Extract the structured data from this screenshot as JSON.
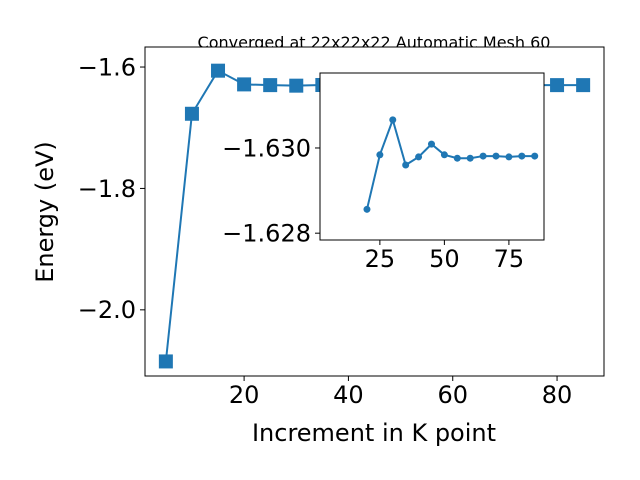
{
  "chart_data": [
    {
      "type": "line",
      "title": "Converged at 22x22x22 Automatic Mesh 60",
      "xlabel": "Increment in K point",
      "ylabel": "Energy (eV)",
      "x": [
        5,
        10,
        15,
        20,
        25,
        30,
        35,
        40,
        45,
        50,
        55,
        60,
        65,
        70,
        75,
        80,
        85
      ],
      "series": [
        {
          "color": "#1f77b4",
          "marker": "square",
          "values": [
            -2.085,
            -1.677,
            -1.606,
            -1.6286,
            -1.6298,
            -1.6307,
            -1.6296,
            -1.6298,
            -1.6301,
            -1.6298,
            -1.6298,
            -1.6298,
            -1.6298,
            -1.6298,
            -1.6298,
            -1.6298,
            -1.6298
          ]
        }
      ],
      "xlim": [
        1,
        89
      ],
      "ylim": [
        -2.109,
        -1.567
      ],
      "xticks": [
        20,
        40,
        60,
        80
      ],
      "yticks": [
        {
          "value": -2.0,
          "label": "−2.0"
        },
        {
          "value": -1.8,
          "label": "−1.8"
        },
        {
          "value": -1.6,
          "label": "−1.6"
        }
      ]
    },
    {
      "type": "line",
      "x": [
        20,
        25,
        30,
        35,
        40,
        45,
        50,
        55,
        60,
        65,
        70,
        75,
        80,
        85
      ],
      "series": [
        {
          "color": "#1f77b4",
          "marker": "circle",
          "values": [
            -1.62856,
            -1.62984,
            -1.63066,
            -1.6296,
            -1.62979,
            -1.63009,
            -1.62984,
            -1.62976,
            -1.62976,
            -1.62981,
            -1.62981,
            -1.62979,
            -1.62981,
            -1.62981
          ]
        }
      ],
      "xlim": [
        1.8,
        88.6
      ],
      "ylim": [
        -1.62784,
        -1.63176
      ],
      "xticks": [
        25,
        50,
        75
      ],
      "yticks": [
        {
          "value": -1.628,
          "label": "−1.628"
        },
        {
          "value": -1.63,
          "label": "−1.630"
        }
      ]
    }
  ]
}
